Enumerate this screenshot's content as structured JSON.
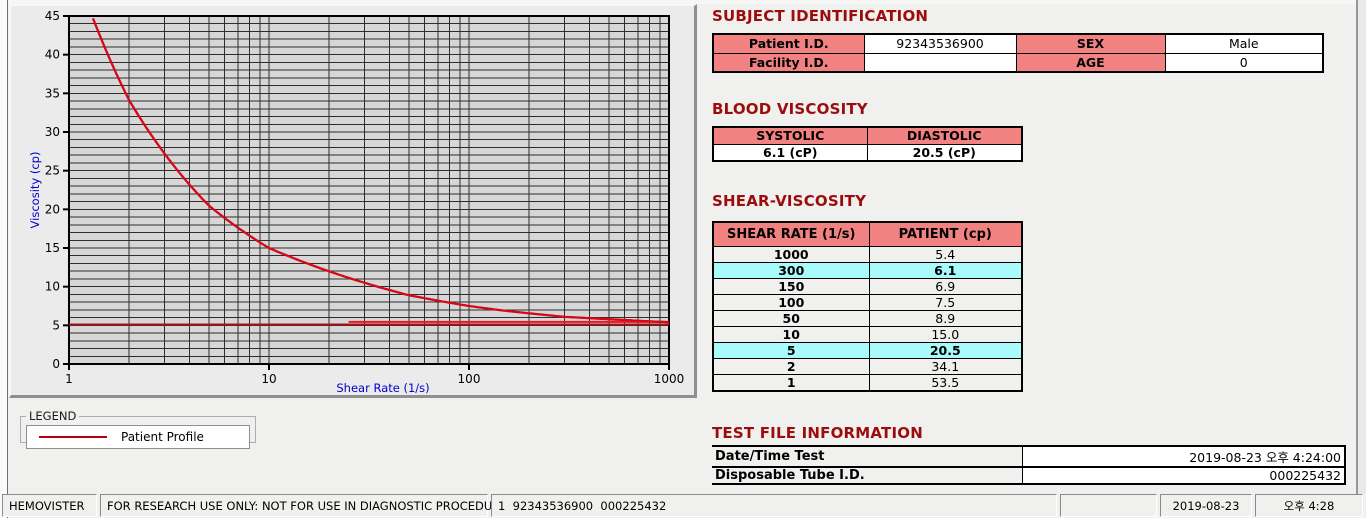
{
  "titles": {
    "subject": "SUBJECT IDENTIFICATION",
    "blood": "BLOOD VISCOSITY",
    "shear": "SHEAR-VISCOSITY",
    "testfile": "TEST FILE INFORMATION"
  },
  "subject_table": {
    "rows": [
      {
        "label1": "Patient I.D.",
        "value1": "92343536900",
        "label2": "SEX",
        "value2": "Male"
      },
      {
        "label1": "Facility I.D.",
        "value1": "",
        "label2": "AGE",
        "value2": "0"
      }
    ]
  },
  "blood_table": {
    "headers": [
      "SYSTOLIC",
      "DIASTOLIC"
    ],
    "values": [
      "6.1 (cP)",
      "20.5 (cP)"
    ]
  },
  "shear_table": {
    "headers": [
      "SHEAR RATE (1/s)",
      "PATIENT (cp)"
    ],
    "rows": [
      {
        "rate": "1000",
        "value": "5.4",
        "highlight": false
      },
      {
        "rate": "300",
        "value": "6.1",
        "highlight": true
      },
      {
        "rate": "150",
        "value": "6.9",
        "highlight": false
      },
      {
        "rate": "100",
        "value": "7.5",
        "highlight": false
      },
      {
        "rate": "50",
        "value": "8.9",
        "highlight": false
      },
      {
        "rate": "10",
        "value": "15.0",
        "highlight": false
      },
      {
        "rate": "5",
        "value": "20.5",
        "highlight": true
      },
      {
        "rate": "2",
        "value": "34.1",
        "highlight": false
      },
      {
        "rate": "1",
        "value": "53.5",
        "highlight": false
      }
    ],
    "highlight_color": "#a9fafa"
  },
  "testfile_table": {
    "rows": [
      {
        "label": "Date/Time Test",
        "value": "2019-08-23  오후 4:24:00"
      },
      {
        "label": "Disposable Tube I.D.",
        "value": "000225432"
      }
    ]
  },
  "legend": {
    "group_label": "LEGEND",
    "entry": "Patient Profile",
    "line_color": "#b3000f"
  },
  "statusbar": {
    "sections": [
      {
        "text": "HEMOVISTER"
      },
      {
        "text": "FOR RESEARCH USE ONLY: NOT FOR USE IN DIAGNOSTIC PROCEDURES"
      },
      {
        "text": "1  92343536900  000225432"
      },
      {
        "text": ""
      },
      {
        "text": "2019-08-23"
      },
      {
        "text": "오후 4:28"
      }
    ]
  },
  "colors": {
    "section_title": "#9b0d0d",
    "table_header_pink": "#f28282",
    "row_highlight_cyan": "#a9fafa",
    "axis_label_blue": "#0000cf",
    "curve_red": "#d60818"
  },
  "chart_data": {
    "type": "line",
    "title": "",
    "xlabel": "Shear Rate (1/s)",
    "ylabel": "Viscosity (cp)",
    "x_scale": "log",
    "x_range": [
      1,
      1000
    ],
    "y_range": [
      0,
      45
    ],
    "y_tick_step": 5,
    "y_grid_step": 1,
    "x_ticks": [
      1,
      10,
      100,
      1000
    ],
    "grid": true,
    "legend_position": "below-left",
    "series": [
      {
        "name": "Patient Profile",
        "color": "#d60818",
        "x": [
          1,
          2,
          5,
          10,
          50,
          100,
          150,
          300,
          1000
        ],
        "y": [
          53.5,
          34.1,
          20.5,
          15.0,
          8.9,
          7.5,
          6.9,
          6.1,
          5.4
        ]
      }
    ],
    "reference_lines": [
      {
        "y": 5.1,
        "x_start": 1,
        "x_end": 1000,
        "color": "#a3131a"
      },
      {
        "y": 5.45,
        "x_start": 25,
        "x_end": 1000,
        "color": "#ee1620"
      }
    ]
  }
}
